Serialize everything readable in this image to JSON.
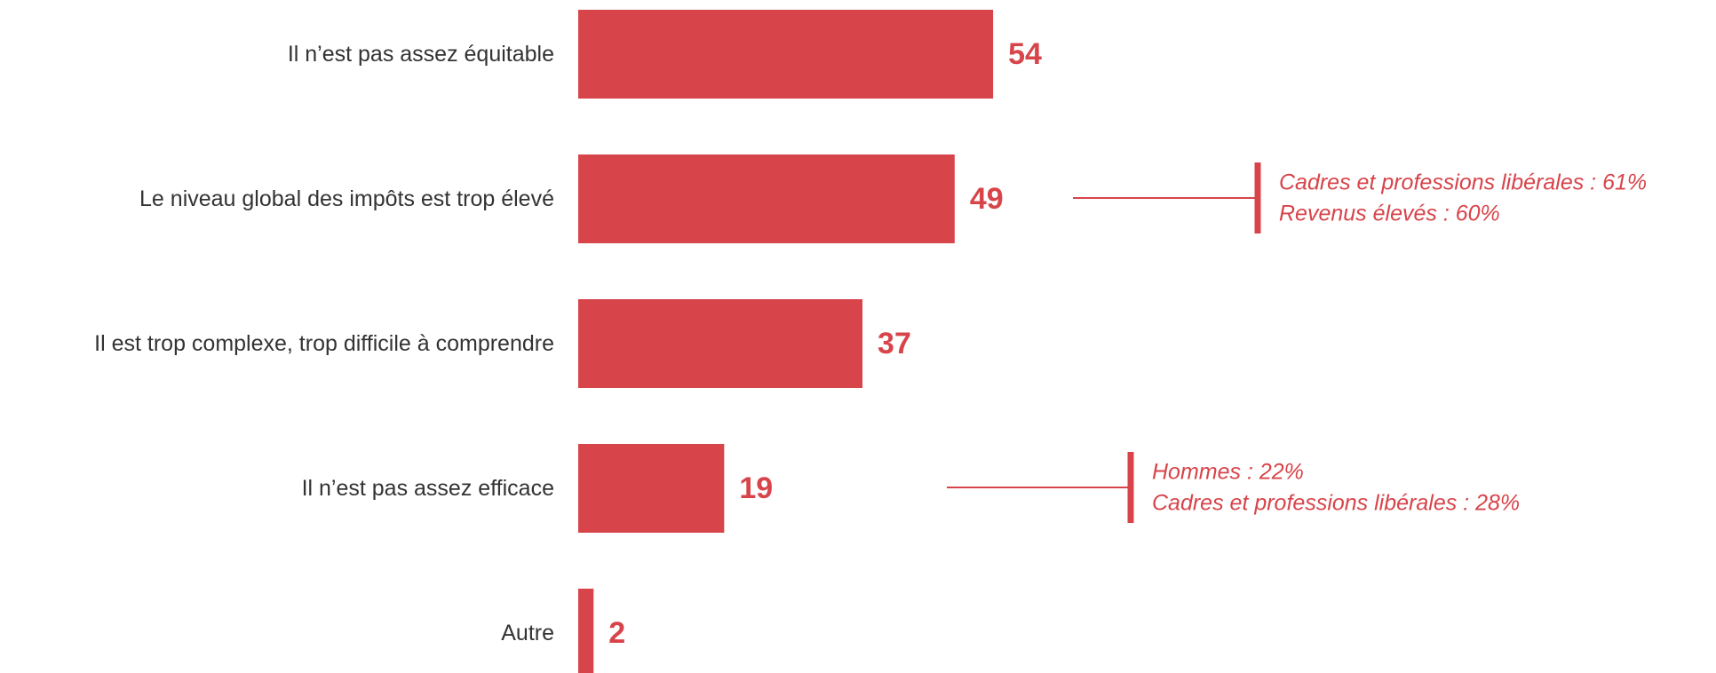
{
  "colors": {
    "accent": "#D7444A",
    "label": "#333333"
  },
  "chart_data": {
    "type": "bar",
    "orientation": "horizontal",
    "categories": [
      "Il n’est pas assez équitable",
      "Le niveau global des impôts est trop élevé",
      "Il est trop complexe, trop difficile à comprendre",
      "Il n’est pas assez efficace",
      "Autre"
    ],
    "values": [
      54,
      49,
      37,
      19,
      2
    ],
    "title": "",
    "xlabel": "",
    "ylabel": "",
    "xlim": [
      0,
      100
    ],
    "grid": false,
    "legend": "none",
    "annotations": [
      {
        "category_index": 1,
        "lines": [
          "Cadres et professions libérales : 61%",
          "Revenus élevés : 60%"
        ]
      },
      {
        "category_index": 3,
        "lines": [
          "Hommes : 22%",
          "Cadres et professions libérales : 28%"
        ]
      }
    ]
  }
}
